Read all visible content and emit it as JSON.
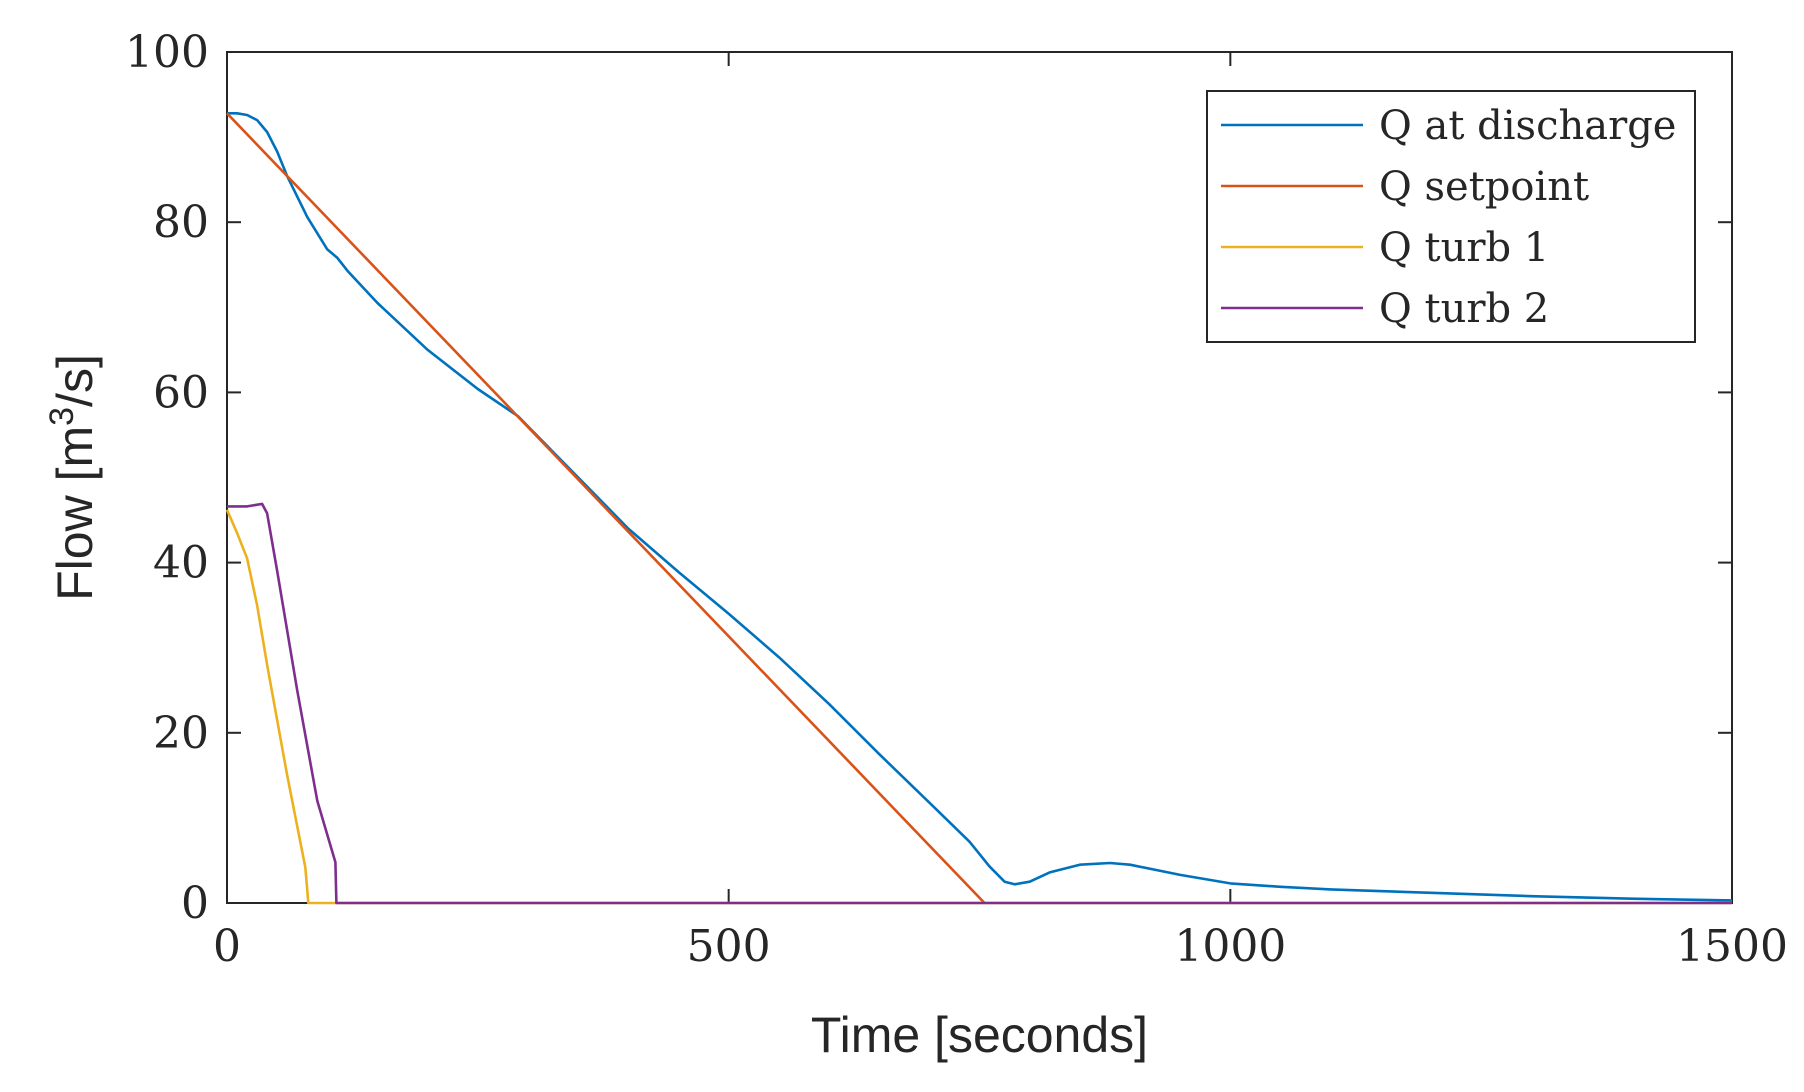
{
  "chart_data": {
    "type": "line",
    "title": "",
    "xlabel": "Time [seconds]",
    "ylabel_text": "Flow [m",
    "ylabel_sup": "3",
    "ylabel_tail": "/s]",
    "xlim": [
      0,
      1500
    ],
    "ylim": [
      0,
      100
    ],
    "xticks": [
      0,
      500,
      1000,
      1500
    ],
    "yticks": [
      0,
      20,
      40,
      60,
      80,
      100
    ],
    "grid": false,
    "legend_position": "top-right",
    "series": [
      {
        "name": "Q at discharge",
        "color": "#0072BD",
        "x": [
          0,
          10,
          20,
          30,
          40,
          50,
          60,
          80,
          100,
          110,
          120,
          150,
          200,
          250,
          290,
          300,
          350,
          400,
          450,
          500,
          550,
          600,
          650,
          700,
          740,
          760,
          775,
          785,
          800,
          820,
          850,
          880,
          900,
          950,
          1000,
          1050,
          1100,
          1200,
          1300,
          1400,
          1500
        ],
        "y": [
          92.8,
          92.8,
          92.6,
          92,
          90.6,
          88.3,
          85.4,
          80.6,
          76.8,
          75.8,
          74.3,
          70.5,
          65,
          60.4,
          57.2,
          56,
          50,
          44,
          38.9,
          34,
          28.9,
          23.4,
          17.5,
          11.8,
          7.2,
          4.3,
          2.5,
          2.2,
          2.5,
          3.6,
          4.5,
          4.7,
          4.5,
          3.3,
          2.3,
          1.9,
          1.6,
          1.2,
          0.8,
          0.5,
          0.3
        ]
      },
      {
        "name": "Q setpoint",
        "color": "#D95319",
        "x": [
          0,
          755
        ],
        "y": [
          92.8,
          0
        ]
      },
      {
        "name": "Q turb 1",
        "color": "#EDB120",
        "x": [
          0,
          10,
          20,
          30,
          40,
          60,
          78,
          80,
          81,
          110,
          1500
        ],
        "y": [
          46.2,
          43.5,
          40.5,
          35,
          28,
          15,
          4.2,
          1.5,
          0,
          0,
          0
        ]
      },
      {
        "name": "Q turb 2",
        "color": "#7E2F8E",
        "x": [
          0,
          20,
          35,
          40,
          50,
          70,
          90,
          108,
          109,
          1500
        ],
        "y": [
          46.6,
          46.6,
          46.9,
          45.8,
          39,
          25,
          12,
          4.8,
          0,
          0
        ]
      }
    ]
  }
}
